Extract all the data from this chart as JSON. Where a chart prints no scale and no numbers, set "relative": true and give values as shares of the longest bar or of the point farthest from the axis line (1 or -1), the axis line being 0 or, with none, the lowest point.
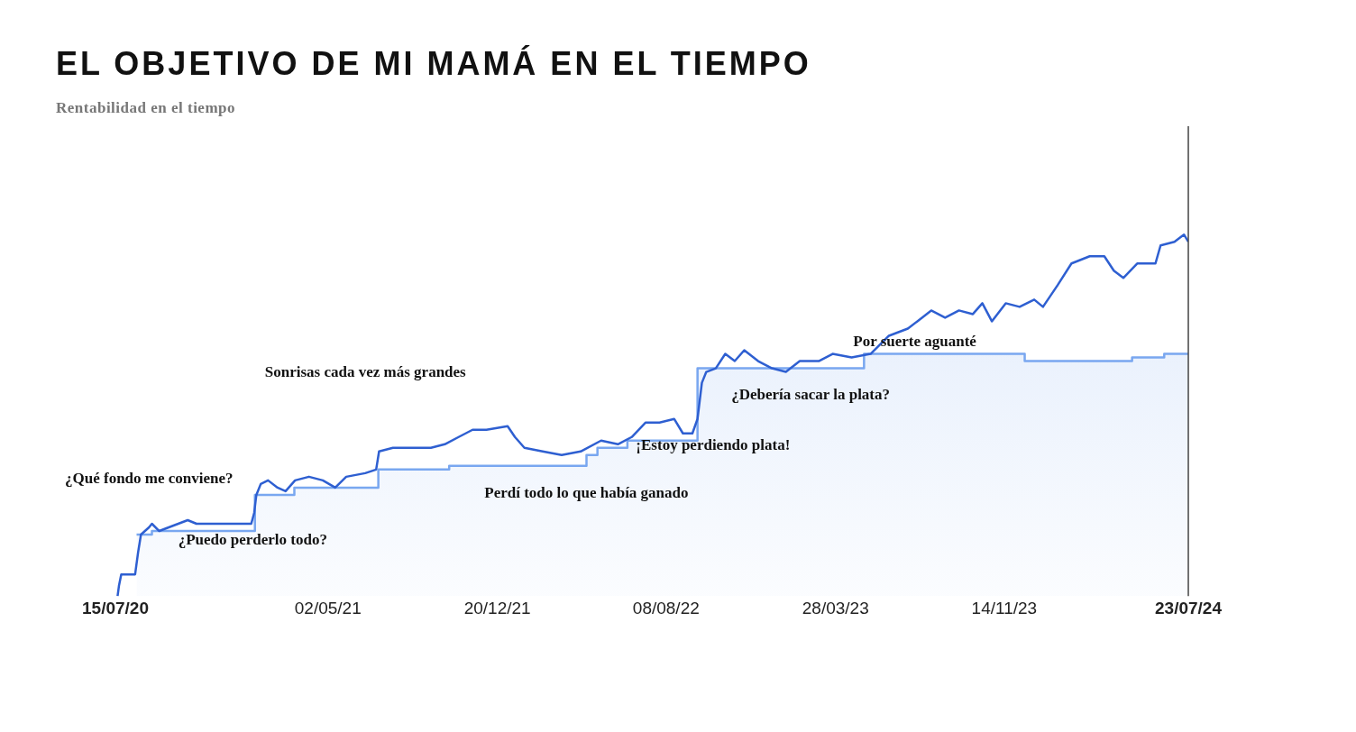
{
  "chart_data": {
    "type": "line",
    "title": "EL OBJETIVO DE MI MAMÁ EN EL TIEMPO",
    "subtitle": "Rentabilidad en el tiempo",
    "relative": true,
    "grid": false,
    "legend": false,
    "marker": "none",
    "xlim": [
      "2020-07-15",
      "2024-07-23"
    ],
    "xticks": [
      {
        "value": "2020-07-15",
        "label": "15/07/20"
      },
      {
        "value": "2021-05-02",
        "label": "02/05/21"
      },
      {
        "value": "2021-12-20",
        "label": "20/12/21"
      },
      {
        "value": "2022-08-08",
        "label": "08/08/22"
      },
      {
        "value": "2023-03-28",
        "label": "28/03/23"
      },
      {
        "value": "2023-11-14",
        "label": "14/11/23"
      },
      {
        "value": "2024-07-23",
        "label": "23/07/24"
      }
    ],
    "series": [
      {
        "type": "area",
        "color": "#79a7f0",
        "x": [
          "2020-08-13",
          "2020-09-03",
          "2020-09-03",
          "2021-01-22",
          "2021-01-22",
          "2021-03-17",
          "2021-03-17",
          "2021-07-10",
          "2021-07-10",
          "2021-10-15",
          "2021-10-15",
          "2022-04-21",
          "2022-04-21",
          "2022-05-06",
          "2022-05-06",
          "2022-06-16",
          "2022-06-16",
          "2022-09-20",
          "2022-09-20",
          "2023-05-06",
          "2023-05-06",
          "2023-12-12",
          "2023-12-12",
          "2024-05-07",
          "2024-05-07",
          "2024-06-20",
          "2024-06-20",
          "2024-07-23"
        ],
        "values": [
          0.17,
          0.17,
          0.18,
          0.18,
          0.28,
          0.28,
          0.3,
          0.3,
          0.35,
          0.35,
          0.36,
          0.36,
          0.39,
          0.39,
          0.41,
          0.41,
          0.43,
          0.43,
          0.63,
          0.63,
          0.67,
          0.67,
          0.65,
          0.65,
          0.66,
          0.66,
          0.67,
          0.67
        ]
      },
      {
        "color": "#2e5fd1",
        "x": [
          "2020-07-18",
          "2020-07-20",
          "2020-07-23",
          "2020-08-11",
          "2020-08-15",
          "2020-08-19",
          "2020-08-30",
          "2020-09-03",
          "2020-09-13",
          "2020-10-09",
          "2020-10-22",
          "2020-11-03",
          "2020-11-29",
          "2021-01-17",
          "2021-01-21",
          "2021-01-24",
          "2021-01-30",
          "2021-02-09",
          "2021-02-22",
          "2021-03-05",
          "2021-03-18",
          "2021-04-06",
          "2021-04-25",
          "2021-05-12",
          "2021-05-27",
          "2021-06-22",
          "2021-07-07",
          "2021-07-11",
          "2021-07-30",
          "2021-08-25",
          "2021-09-20",
          "2021-10-09",
          "2021-10-28",
          "2021-11-16",
          "2021-12-05",
          "2022-01-03",
          "2022-01-13",
          "2022-01-26",
          "2022-02-20",
          "2022-03-18",
          "2022-04-13",
          "2022-05-11",
          "2022-06-03",
          "2022-06-22",
          "2022-07-11",
          "2022-07-30",
          "2022-08-19",
          "2022-08-31",
          "2022-09-13",
          "2022-09-20",
          "2022-09-26",
          "2022-10-02",
          "2022-10-15",
          "2022-10-28",
          "2022-11-10",
          "2022-11-23",
          "2022-12-12",
          "2022-12-31",
          "2023-01-19",
          "2023-02-07",
          "2023-03-05",
          "2023-03-24",
          "2023-04-19",
          "2023-05-15",
          "2023-06-09",
          "2023-07-05",
          "2023-07-18",
          "2023-08-06",
          "2023-08-25",
          "2023-09-13",
          "2023-10-02",
          "2023-10-15",
          "2023-10-28",
          "2023-11-16",
          "2023-12-05",
          "2023-12-25",
          "2024-01-06",
          "2024-01-26",
          "2024-02-14",
          "2024-03-10",
          "2024-03-30",
          "2024-04-12",
          "2024-04-25",
          "2024-05-14",
          "2024-06-08",
          "2024-06-15",
          "2024-07-04",
          "2024-07-17",
          "2024-07-23"
        ],
        "values": [
          0,
          0.03,
          0.06,
          0.06,
          0.12,
          0.17,
          0.19,
          0.2,
          0.18,
          0.2,
          0.21,
          0.2,
          0.2,
          0.2,
          0.23,
          0.28,
          0.31,
          0.32,
          0.3,
          0.29,
          0.32,
          0.33,
          0.32,
          0.3,
          0.33,
          0.34,
          0.35,
          0.4,
          0.41,
          0.41,
          0.41,
          0.42,
          0.44,
          0.46,
          0.46,
          0.47,
          0.44,
          0.41,
          0.4,
          0.39,
          0.4,
          0.43,
          0.42,
          0.44,
          0.48,
          0.48,
          0.49,
          0.45,
          0.45,
          0.49,
          0.59,
          0.62,
          0.63,
          0.67,
          0.65,
          0.68,
          0.65,
          0.63,
          0.62,
          0.65,
          0.65,
          0.67,
          0.66,
          0.67,
          0.72,
          0.74,
          0.76,
          0.79,
          0.77,
          0.79,
          0.78,
          0.81,
          0.76,
          0.81,
          0.8,
          0.82,
          0.8,
          0.86,
          0.92,
          0.94,
          0.94,
          0.9,
          0.88,
          0.92,
          0.92,
          0.97,
          0.98,
          1,
          0.98
        ]
      }
    ],
    "ref_lines": [
      {
        "axis": "x",
        "value": "2024-07-23",
        "color": "#444444"
      }
    ],
    "annotations": [
      "¿Qué fondo me conviene?",
      "¿Puedo perderlo todo?",
      "Sonrisas cada vez más grandes",
      "Perdí todo lo que había ganado",
      "¡Estoy perdiendo plata!",
      "¿Debería sacar la plata?",
      "Por suerte aguanté"
    ]
  }
}
